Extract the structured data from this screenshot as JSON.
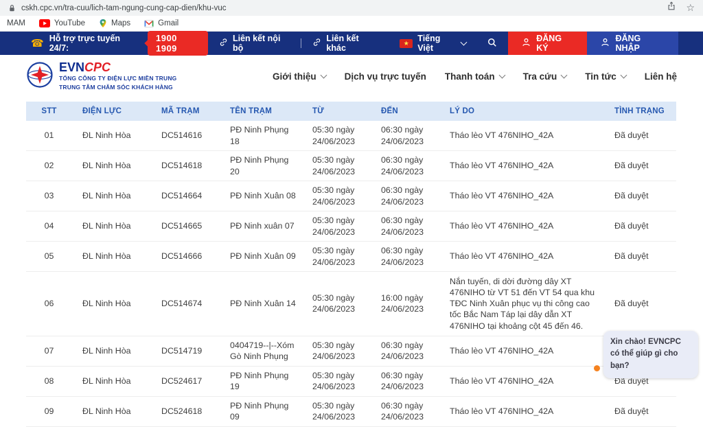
{
  "browser": {
    "url": "cskh.cpc.vn/tra-cuu/lich-tam-ngung-cung-cap-dien/khu-vuc",
    "bookmarks": [
      {
        "label": "MAM",
        "icon": "none"
      },
      {
        "label": "YouTube",
        "icon": "youtube"
      },
      {
        "label": "Maps",
        "icon": "maps"
      },
      {
        "label": "Gmail",
        "icon": "gmail"
      }
    ]
  },
  "topbar": {
    "support_label": "Hỗ trợ trực tuyến 24/7:",
    "hotline": "1900 1909",
    "link_internal": "Liên kết nội bộ",
    "link_other": "Liên kết khác",
    "language": "Tiếng Việt",
    "register_label": "ĐĂNG KÝ",
    "login_label": "ĐĂNG NHẬP"
  },
  "header": {
    "logo_evn": "EVN",
    "logo_cpc": "CPC",
    "company_line1": "TỔNG CÔNG TY ĐIỆN LỰC MIỀN TRUNG",
    "company_line2": "TRUNG TÂM CHĂM SÓC KHÁCH HÀNG",
    "nav": [
      {
        "label": "Giới thiệu",
        "dropdown": true
      },
      {
        "label": "Dịch vụ trực tuyến",
        "dropdown": false
      },
      {
        "label": "Thanh toán",
        "dropdown": true
      },
      {
        "label": "Tra cứu",
        "dropdown": true
      },
      {
        "label": "Tin tức",
        "dropdown": true
      },
      {
        "label": "Liên hệ",
        "dropdown": false
      }
    ]
  },
  "table": {
    "columns": [
      "STT",
      "ĐIỆN LỰC",
      "MÃ TRẠM",
      "TÊN TRẠM",
      "TỪ",
      "ĐẾN",
      "LÝ DO",
      "TÌNH TRẠNG"
    ],
    "rows": [
      {
        "cells": [
          "01",
          "ĐL Ninh Hòa",
          "DC514616",
          "PĐ Ninh Phụng 18",
          "05:30 ngày 24/06/2023",
          "06:30 ngày 24/06/2023",
          "Tháo lèo VT 476NIHO_42A",
          "Đã duyệt"
        ]
      },
      {
        "cells": [
          "02",
          "ĐL Ninh Hòa",
          "DC514618",
          "PĐ Ninh Phụng 20",
          "05:30 ngày 24/06/2023",
          "06:30 ngày 24/06/2023",
          "Tháo lèo VT 476NIHO_42A",
          "Đã duyệt"
        ]
      },
      {
        "cells": [
          "03",
          "ĐL Ninh Hòa",
          "DC514664",
          "PĐ Ninh Xuân 08",
          "05:30 ngày 24/06/2023",
          "06:30 ngày 24/06/2023",
          "Tháo lèo VT 476NIHO_42A",
          "Đã duyệt"
        ]
      },
      {
        "cells": [
          "04",
          "ĐL Ninh Hòa",
          "DC514665",
          "PĐ Ninh xuân 07",
          "05:30 ngày 24/06/2023",
          "06:30 ngày 24/06/2023",
          "Tháo lèo VT 476NIHO_42A",
          "Đã duyệt"
        ]
      },
      {
        "cells": [
          "05",
          "ĐL Ninh Hòa",
          "DC514666",
          "PĐ Ninh Xuân 09",
          "05:30 ngày 24/06/2023",
          "06:30 ngày 24/06/2023",
          "Tháo lèo VT 476NIHO_42A",
          "Đã duyệt"
        ]
      },
      {
        "cells": [
          "06",
          "ĐL Ninh Hòa",
          "DC514674",
          "PĐ Ninh Xuân 14",
          "05:30 ngày 24/06/2023",
          "16:00 ngày 24/06/2023",
          "Nắn tuyến, di dời đường dây XT 476NIHO từ VT 51 đến VT 54 qua khu TĐC Ninh Xuân phục vụ thi công cao tốc Bắc Nam Táp lại dây dẫn XT 476NIHO tại khoảng cột 45 đến 46.",
          "Đã duyệt"
        ]
      },
      {
        "cells": [
          "07",
          "ĐL Ninh Hòa",
          "DC514719",
          "0404719--|--Xóm Gò Ninh Phụng",
          "05:30 ngày 24/06/2023",
          "06:30 ngày 24/06/2023",
          "Tháo lèo VT 476NIHO_42A",
          "Đã duyệt"
        ]
      },
      {
        "cells": [
          "08",
          "ĐL Ninh Hòa",
          "DC524617",
          "PĐ Ninh Phụng 19",
          "05:30 ngày 24/06/2023",
          "06:30 ngày 24/06/2023",
          "Tháo lèo VT 476NIHO_42A",
          "Đã duyệt"
        ]
      },
      {
        "cells": [
          "09",
          "ĐL Ninh Hòa",
          "DC524618",
          "PĐ Ninh Phụng 09",
          "05:30 ngày 24/06/2023",
          "06:30 ngày 24/06/2023",
          "Tháo lèo VT 476NIHO_42A",
          "Đã duyệt"
        ]
      }
    ]
  },
  "chat": {
    "greeting": "Xin chào! EVNCPC có thể giúp gì cho bạn?"
  },
  "colors": {
    "topbar_blue": "#17307e",
    "accent_red": "#ea2a25",
    "login_blue": "#2b46a8",
    "table_header_bg": "#dce8f7",
    "table_header_text": "#2658b0"
  }
}
